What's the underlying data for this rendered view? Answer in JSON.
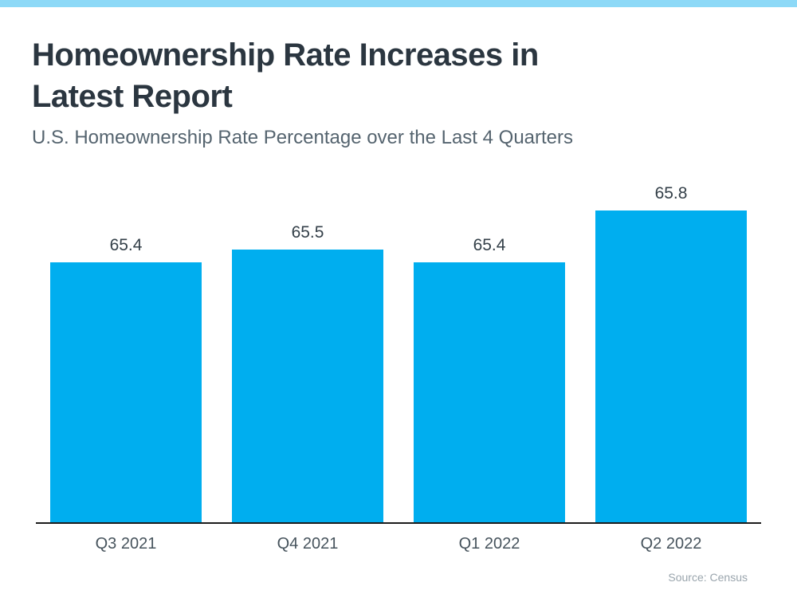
{
  "accent": {
    "top_bar_color": "#8dd9f7"
  },
  "header": {
    "title_line1": "Homeownership Rate Increases in",
    "title_line2": "Latest Report",
    "subtitle": "U.S. Homeownership Rate Percentage over the Last 4 Quarters"
  },
  "chart_data": {
    "type": "bar",
    "title": "Homeownership Rate Increases in Latest Report",
    "subtitle": "U.S. Homeownership Rate Percentage over the Last 4 Quarters",
    "categories": [
      "Q3 2021",
      "Q4 2021",
      "Q1 2022",
      "Q2 2022"
    ],
    "values": [
      65.4,
      65.5,
      65.4,
      65.8
    ],
    "value_labels": [
      "65.4",
      "65.5",
      "65.4",
      "65.8"
    ],
    "xlabel": "",
    "ylabel": "",
    "ylim": [
      63.4,
      66.0
    ],
    "bar_color": "#00aeef",
    "grid": false,
    "legend": "none",
    "source": "Source: Census"
  },
  "footer": {
    "source": "Source: Census"
  }
}
